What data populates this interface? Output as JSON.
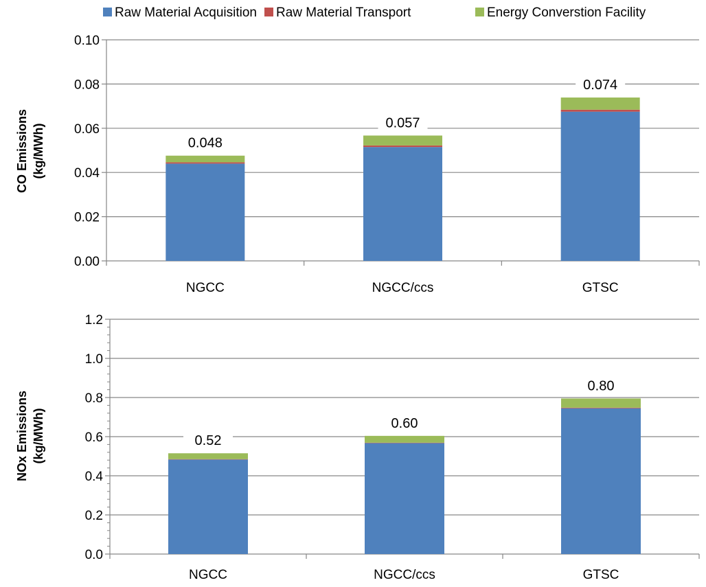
{
  "legend": [
    {
      "label": "Raw Material Acquisition",
      "color": "#4F81BD"
    },
    {
      "label": "Raw Material Transport",
      "color": "#C0504D"
    },
    {
      "label": "Energy Converstion Facility",
      "color": "#9BBB59"
    }
  ],
  "chart_data": [
    {
      "type": "bar",
      "stacked": true,
      "categories": [
        "NGCC",
        "NGCC/ccs",
        "GTSC"
      ],
      "series": [
        {
          "name": "Raw Material Acquisition",
          "values": [
            0.044,
            0.0515,
            0.0675
          ]
        },
        {
          "name": "Raw Material Transport",
          "values": [
            0.0006,
            0.0007,
            0.0009
          ]
        },
        {
          "name": "Energy Converstion Facility",
          "values": [
            0.003,
            0.0045,
            0.0055
          ]
        }
      ],
      "totals_labels": [
        "0.048",
        "0.057",
        "0.074"
      ],
      "title": "",
      "xlabel": "",
      "ylabel_line1": "CO Emissions",
      "ylabel_line2": "(kg/MWh)",
      "ylim": [
        0,
        0.1
      ],
      "yticks": [
        "0.00",
        "0.02",
        "0.04",
        "0.06",
        "0.08",
        "0.10"
      ],
      "grid": true,
      "legend_position": "top"
    },
    {
      "type": "bar",
      "stacked": true,
      "categories": [
        "NGCC",
        "NGCC/ccs",
        "GTSC"
      ],
      "series": [
        {
          "name": "Raw Material Acquisition",
          "values": [
            0.483,
            0.567,
            0.745
          ]
        },
        {
          "name": "Raw Material Transport",
          "values": [
            0.002,
            0.002,
            0.003
          ]
        },
        {
          "name": "Energy Converstion Facility",
          "values": [
            0.03,
            0.035,
            0.047
          ]
        }
      ],
      "totals_labels": [
        "0.52",
        "0.60",
        "0.80"
      ],
      "title": "",
      "xlabel": "",
      "ylabel_line1": "NOx  Emissions",
      "ylabel_line2": "(kg/MWh)",
      "ylim": [
        0,
        1.2
      ],
      "yticks": [
        "0.0",
        "0.2",
        "0.4",
        "0.6",
        "0.8",
        "1.0",
        "1.2"
      ],
      "grid": true,
      "legend_position": "top"
    }
  ]
}
